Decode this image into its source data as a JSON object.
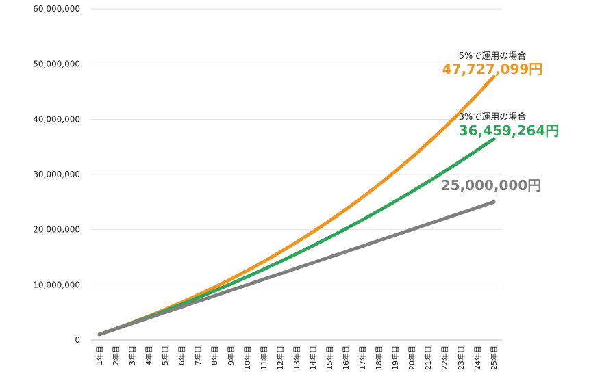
{
  "chart_data": {
    "type": "line",
    "categories": [
      "1年目",
      "2年目",
      "3年目",
      "4年目",
      "5年目",
      "6年目",
      "7年目",
      "8年目",
      "9年目",
      "10年目",
      "11年目",
      "12年目",
      "13年目",
      "14年目",
      "15年目",
      "16年目",
      "17年目",
      "18年目",
      "19年目",
      "20年目",
      "21年目",
      "22年目",
      "23年目",
      "24年目",
      "25年目"
    ],
    "series": [
      {
        "name": "5%で運用の場合",
        "color": "#f0961e",
        "values": [
          1000000,
          2050000,
          3152500,
          4310125,
          5525631,
          6801913,
          8142008,
          9549109,
          11026564,
          12577893,
          14206787,
          15917127,
          17712983,
          19598632,
          21578564,
          23657492,
          25840366,
          28132385,
          30539004,
          33065954,
          35719252,
          38505214,
          41430475,
          44501999,
          47727099
        ]
      },
      {
        "name": "3%で運用の場合",
        "color": "#2ea55a",
        "values": [
          1000000,
          2030000,
          3090900,
          4183627,
          5309136,
          6468410,
          7662462,
          8892336,
          10159106,
          11463879,
          12807796,
          14192030,
          15617790,
          17086324,
          18598914,
          20156881,
          21761588,
          23414435,
          25116868,
          26870375,
          28676486,
          30536780,
          32452884,
          34426470,
          36459264
        ]
      },
      {
        "color": "#7f7f7f",
        "values": [
          1000000,
          2000000,
          3000000,
          4000000,
          5000000,
          6000000,
          7000000,
          8000000,
          9000000,
          10000000,
          11000000,
          12000000,
          13000000,
          14000000,
          15000000,
          16000000,
          17000000,
          18000000,
          19000000,
          20000000,
          21000000,
          22000000,
          23000000,
          24000000,
          25000000
        ]
      }
    ],
    "end_labels": [
      "47,727,099円",
      "36,459,264円",
      "25,000,000円"
    ],
    "ylim": [
      0,
      60000000
    ],
    "yticks": [
      {
        "value": 0,
        "label": "0"
      },
      {
        "value": 10000000,
        "label": "10,000,000"
      },
      {
        "value": 20000000,
        "label": "20,000,000"
      },
      {
        "value": 30000000,
        "label": "30,000,000"
      },
      {
        "value": 40000000,
        "label": "40,000,000"
      },
      {
        "value": 50000000,
        "label": "50,000,000"
      },
      {
        "value": 60000000,
        "label": "60,000,000"
      }
    ],
    "grid": true
  }
}
